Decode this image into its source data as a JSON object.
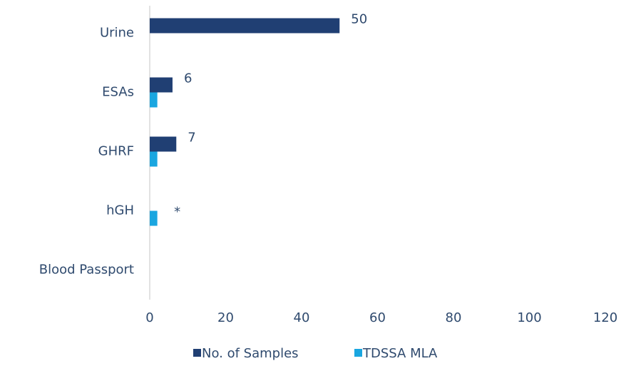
{
  "chart_data": {
    "type": "bar",
    "orientation": "horizontal",
    "categories": [
      "Urine",
      "ESAs",
      "GHRF",
      "hGH",
      "Blood Passport"
    ],
    "series": [
      {
        "name": "No. of Samples",
        "color": "#203f73",
        "values": [
          50,
          6,
          7,
          null,
          null
        ]
      },
      {
        "name": "TDSSA MLA",
        "color": "#1aa6e0",
        "values": [
          null,
          2,
          2,
          2,
          null
        ]
      }
    ],
    "annotation": "*",
    "xlim": [
      0,
      120
    ],
    "xticks": [
      0,
      20,
      40,
      60,
      80,
      100,
      120
    ],
    "grid": false,
    "legend": "bottom"
  }
}
